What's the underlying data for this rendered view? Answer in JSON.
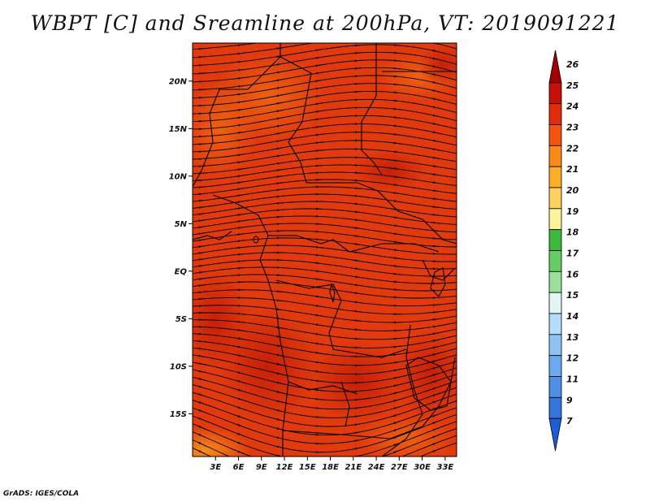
{
  "title": "WBPT [C] and Sreamline at 200hPa, VT: 2019091221",
  "credit": "GrADS: IGES/COLA",
  "map": {
    "lat_labels": [
      "20N",
      "15N",
      "10N",
      "5N",
      "EQ",
      "5S",
      "10S",
      "15S"
    ],
    "lon_labels": [
      "3E",
      "6E",
      "9E",
      "12E",
      "15E",
      "18E",
      "21E",
      "24E",
      "27E",
      "30E",
      "33E"
    ],
    "lon_range": [
      0,
      34.5
    ],
    "lat_range": [
      -19.5,
      24
    ],
    "field_colors": {
      "base": "#e03a0e",
      "warm": "#c41c06",
      "cool": "#ee6612",
      "coolest": "#f5901a"
    }
  },
  "colorbar": {
    "labels": [
      "26",
      "25",
      "24",
      "23",
      "22",
      "21",
      "20",
      "19",
      "18",
      "17",
      "16",
      "15",
      "14",
      "13",
      "12",
      "11",
      "9",
      "7"
    ],
    "colors": [
      "#a50000",
      "#c80f0a",
      "#e22c0e",
      "#f25512",
      "#f98a19",
      "#fbaf28",
      "#fdd160",
      "#fef29c",
      "#3cb83c",
      "#64cd64",
      "#9be09b",
      "#e2f7f2",
      "#b5dcfa",
      "#8ec4f4",
      "#6baaee",
      "#4d90e4",
      "#3476dc",
      "#1d5ed4"
    ]
  }
}
